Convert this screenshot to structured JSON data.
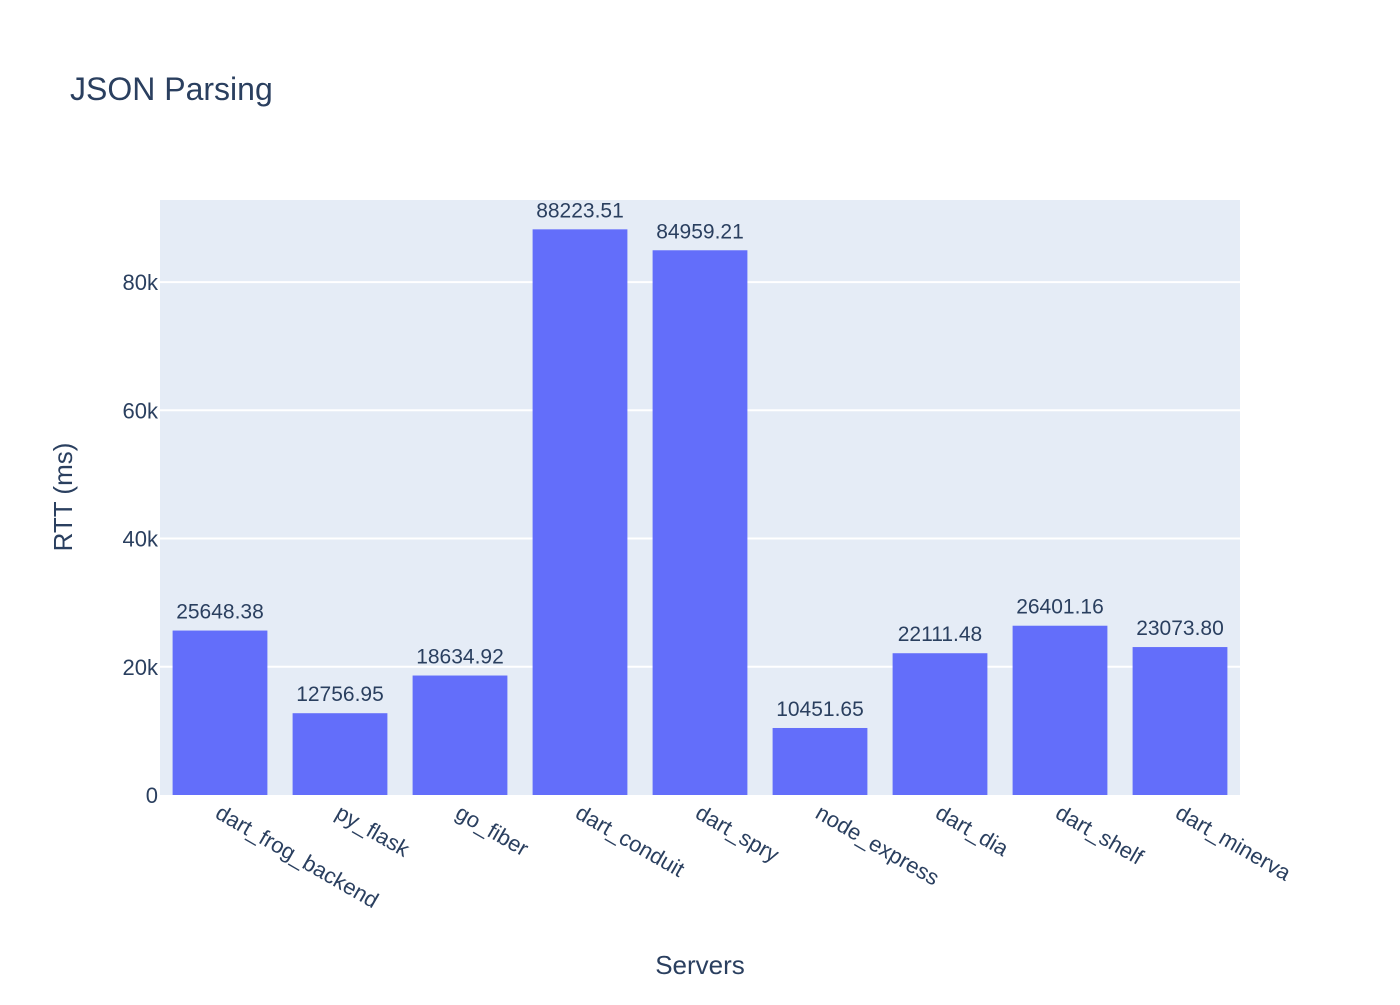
{
  "chart_data": {
    "type": "bar",
    "title": "JSON Parsing",
    "xlabel": "Servers",
    "ylabel": "RTT (ms)",
    "categories": [
      "dart_frog_backend",
      "py_flask",
      "go_fiber",
      "dart_conduit",
      "dart_spry",
      "node_express",
      "dart_dia",
      "dart_shelf",
      "dart_minerva"
    ],
    "values": [
      25648.38,
      12756.95,
      18634.92,
      88223.51,
      84959.21,
      10451.65,
      22111.48,
      26401.16,
      23073.8
    ],
    "data_labels": [
      "25648.38",
      "12756.95",
      "18634.92",
      "88223.51",
      "84959.21",
      "10451.65",
      "22111.48",
      "26401.16",
      "23073.80"
    ],
    "yticks": [
      0,
      20000,
      40000,
      60000,
      80000
    ],
    "ytick_labels": [
      "0",
      "20k",
      "40k",
      "60k",
      "80k"
    ],
    "ylim": [
      0,
      92800
    ],
    "grid": true,
    "colors": {
      "bar": "#636efa",
      "plot_bg": "#e5ecf6",
      "grid": "#ffffff",
      "text": "#2a3f5f"
    }
  }
}
